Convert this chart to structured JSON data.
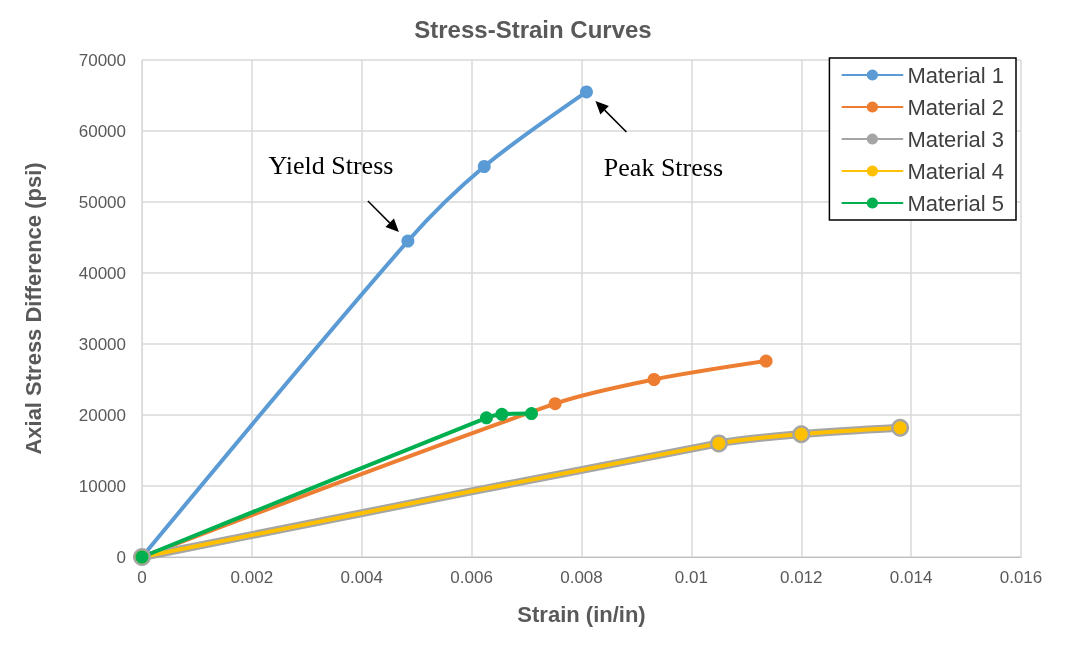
{
  "chart_data": {
    "type": "line",
    "title": "Stress-Strain Curves",
    "xlabel": "Strain (in/in)",
    "ylabel": "Axial Stress Difference (psi)",
    "xlim": [
      0,
      0.016
    ],
    "xticks": [
      0,
      0.002,
      0.004,
      0.006,
      0.008,
      0.01,
      0.012,
      0.014,
      0.016
    ],
    "ylim": [
      0,
      70000
    ],
    "yticks": [
      0,
      10000,
      20000,
      30000,
      40000,
      50000,
      60000,
      70000
    ],
    "grid": true,
    "legend": "top right",
    "marker": "circle",
    "line_style": "solid",
    "series": [
      {
        "name": "Material 1",
        "color": "#5b9bd5",
        "x": [
          0,
          0.00484,
          0.00623,
          0.00809
        ],
        "values": [
          0,
          44500,
          55000,
          65500
        ]
      },
      {
        "name": "Material 2",
        "color": "#ed7d31",
        "x": [
          0,
          0.00752,
          0.00932,
          0.01136
        ],
        "values": [
          0,
          21600,
          25000,
          27600
        ]
      },
      {
        "name": "Material 3",
        "color": "#a5a5a5",
        "x": [
          0,
          0.0105,
          0.012,
          0.0138
        ],
        "values": [
          0,
          16000,
          17300,
          18200
        ]
      },
      {
        "name": "Material 4",
        "color": "#ffc000",
        "x": [
          0,
          0.0105,
          0.012,
          0.0138
        ],
        "values": [
          0,
          16000,
          17300,
          18200
        ]
      },
      {
        "name": "Material 5",
        "color": "#00b050",
        "x": [
          0,
          0.00627,
          0.00655,
          0.00709
        ],
        "values": [
          0,
          19600,
          20100,
          20200
        ]
      }
    ],
    "annotations": [
      {
        "text": "Yield Stress",
        "x": 0.00484,
        "y": 44500
      },
      {
        "text": "Peak Stress",
        "x": 0.00809,
        "y": 65500
      }
    ]
  }
}
